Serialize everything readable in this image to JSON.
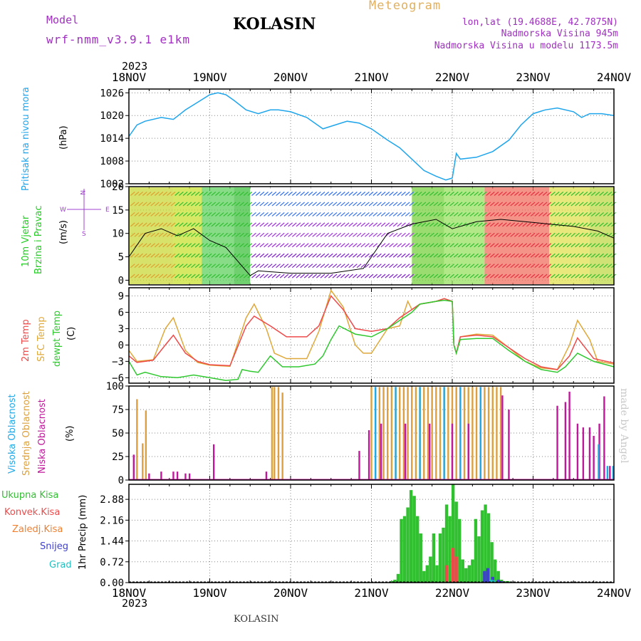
{
  "header": {
    "model_label": "Model",
    "model_name": "wrf-nmm_v3.9.1 e1km",
    "station": "KOLASIN",
    "meteogram_label": "Meteogram",
    "lonlat": "lon,lat (19.4688E, 42.7875N)",
    "elevation": "Nadmorska Visina 945m",
    "model_elevation": "Nadmorska Visina u modelu 1173.5m",
    "credit": "made by Angel",
    "footer_station": "KOLASIN"
  },
  "colors": {
    "pressure": "#1ea5ec",
    "temp2m": "#ef4a4a",
    "sfc": "#dfa83a",
    "dewpt": "#2fc82f",
    "high_cloud": "#20a8e8",
    "mid_cloud": "#dca040",
    "low_cloud": "#c0189a",
    "precip_total": "#30c030",
    "precip_conv": "#ef4a4a",
    "precip_frz": "#f08030",
    "snow": "#4040d0",
    "grad": "#20c0c0",
    "wind_label": "#22cc22",
    "wind_axis": "#a040d0",
    "model_text": "#a030c0",
    "meteogram_text": "#e0b060"
  },
  "chart_data": [
    {
      "type": "line",
      "panel": "pressure",
      "left_label": "Pritisak na nivou mora",
      "ylabel": "(hPa)",
      "ylim": [
        1002,
        1027
      ],
      "yticks": [
        "1026",
        "1020",
        "1014",
        "1008",
        "1002"
      ],
      "ytick_values": [
        1026,
        1020,
        1014,
        1008,
        1002
      ],
      "grid": true,
      "series": [
        {
          "x": [
            0,
            0.1,
            0.2,
            0.4,
            0.55,
            0.7,
            0.85,
            1.0,
            1.1,
            1.2,
            1.3,
            1.45,
            1.6,
            1.75,
            1.85,
            2.0,
            2.2,
            2.4,
            2.55,
            2.7,
            2.85,
            3.0,
            3.2,
            3.35,
            3.5,
            3.65,
            3.8,
            3.92,
            4.0,
            4.05,
            4.1,
            4.3,
            4.5,
            4.7,
            4.85,
            5.0,
            5.15,
            5.3,
            5.5,
            5.6,
            5.7,
            5.85,
            6.0
          ],
          "y": [
            1014.5,
            1017.5,
            1018.5,
            1019.5,
            1019,
            1021.5,
            1023.5,
            1025.5,
            1026,
            1025.5,
            1024,
            1021.5,
            1020.5,
            1021.5,
            1021.5,
            1021,
            1019.5,
            1016.5,
            1017.5,
            1018.5,
            1018,
            1016.5,
            1013.5,
            1011.5,
            1008.5,
            1005.5,
            1004,
            1003,
            1003.5,
            1010,
            1008.5,
            1009,
            1010.5,
            1013.5,
            1017.5,
            1020.5,
            1021.5,
            1022,
            1021,
            1019.5,
            1020.5,
            1020.5,
            1020
          ]
        }
      ]
    },
    {
      "type": "line",
      "panel": "wind",
      "left_label_1": "10m Vjetar",
      "left_label_2": "Brzina i Pravac",
      "ylabel": "(m/s)",
      "compass": [
        "N",
        "E",
        "S",
        "W"
      ],
      "ylim": [
        -1,
        20
      ],
      "yticks": [
        "20",
        "15",
        "10",
        "5",
        "0"
      ],
      "ytick_values": [
        20,
        15,
        10,
        5,
        0
      ],
      "grid": true,
      "series": [
        {
          "x": [
            0,
            0.2,
            0.4,
            0.6,
            0.8,
            1.0,
            1.2,
            1.4,
            1.5,
            1.6,
            2.0,
            2.5,
            2.9,
            3.0,
            3.2,
            3.5,
            3.8,
            4.0,
            4.3,
            4.6,
            4.9,
            5.2,
            5.5,
            5.8,
            6.0
          ],
          "y": [
            5,
            10,
            11,
            9.5,
            11,
            8.5,
            7,
            3,
            1,
            2,
            1.5,
            1.5,
            2.5,
            5,
            10,
            12,
            13,
            11,
            12.5,
            13,
            12.5,
            12,
            11.5,
            10.5,
            9
          ]
        }
      ]
    },
    {
      "type": "line",
      "panel": "temperature",
      "left_label_1": "2m Temp",
      "left_label_2": "SFC Temp",
      "left_label_3": "dewpt Temp",
      "ylabel": "(C)",
      "ylim": [
        -7,
        10.5
      ],
      "yticks": [
        "9",
        "6",
        "3",
        "0",
        "−3",
        "−6"
      ],
      "ytick_values": [
        9,
        6,
        3,
        0,
        -3,
        -6
      ],
      "grid": true,
      "series": [
        {
          "name": "2m Temp",
          "x": [
            0,
            0.1,
            0.3,
            0.45,
            0.55,
            0.7,
            0.85,
            1.0,
            1.25,
            1.45,
            1.55,
            1.75,
            1.95,
            2.2,
            2.35,
            2.5,
            2.65,
            2.8,
            3.0,
            3.2,
            3.35,
            3.5,
            3.6,
            3.8,
            3.9,
            4.0,
            4.02,
            4.05,
            4.1,
            4.3,
            4.5,
            4.7,
            4.9,
            5.1,
            5.3,
            5.45,
            5.55,
            5.75,
            6.0
          ],
          "y": [
            -2,
            -3.2,
            -2.8,
            0,
            1.8,
            -1.5,
            -3,
            -3.6,
            -3.8,
            3.5,
            5.3,
            3.5,
            1.5,
            1.5,
            3.5,
            9,
            6.5,
            3,
            2.5,
            3,
            5,
            6.5,
            7.5,
            8,
            8.5,
            8,
            0,
            -1.5,
            1.5,
            1.8,
            1.5,
            -0.5,
            -2.5,
            -4,
            -4.5,
            -2,
            1.3,
            -2.5,
            -3.3
          ]
        },
        {
          "name": "SFC Temp",
          "x": [
            0,
            0.1,
            0.3,
            0.45,
            0.55,
            0.7,
            0.85,
            1.0,
            1.25,
            1.45,
            1.55,
            1.7,
            1.8,
            1.95,
            2.2,
            2.35,
            2.5,
            2.65,
            2.8,
            2.9,
            3.0,
            3.2,
            3.35,
            3.45,
            3.5,
            3.6,
            3.8,
            3.9,
            4.0,
            4.02,
            4.05,
            4.1,
            4.3,
            4.5,
            4.7,
            4.9,
            5.1,
            5.3,
            5.45,
            5.55,
            5.7,
            5.8,
            6.0
          ],
          "y": [
            -1,
            -3,
            -2.7,
            3,
            5,
            -1,
            -3.2,
            -3.7,
            -3.9,
            5,
            7.5,
            3,
            -1.5,
            -2.5,
            -2.5,
            2.5,
            10,
            7,
            0,
            -1.5,
            -1.5,
            3,
            3.5,
            8,
            6.5,
            7.5,
            8,
            8.5,
            8,
            0,
            -1.5,
            1.5,
            2,
            1.8,
            -0.5,
            -3,
            -4.2,
            -4.5,
            0,
            4.5,
            1,
            -3,
            -3.5
          ]
        },
        {
          "name": "dewpt Temp",
          "x": [
            0,
            0.1,
            0.2,
            0.4,
            0.6,
            0.8,
            1.0,
            1.2,
            1.35,
            1.4,
            1.5,
            1.6,
            1.75,
            1.9,
            2.1,
            2.3,
            2.4,
            2.5,
            2.6,
            2.8,
            3.0,
            3.2,
            3.35,
            3.5,
            3.6,
            3.8,
            3.9,
            4.0,
            4.02,
            4.05,
            4.1,
            4.3,
            4.5,
            4.7,
            4.9,
            5.1,
            5.3,
            5.4,
            5.55,
            5.75,
            6.0
          ],
          "y": [
            -3,
            -5.5,
            -5,
            -5.8,
            -6,
            -5.5,
            -6,
            -6.5,
            -6.3,
            -4.5,
            -4.8,
            -5,
            -2,
            -4,
            -4,
            -3.5,
            -2,
            1,
            3.5,
            2,
            1.5,
            3,
            4.5,
            6,
            7.5,
            8,
            8.2,
            8,
            0,
            -1.5,
            1,
            1.2,
            1.2,
            -1,
            -3,
            -4.5,
            -5,
            -4,
            -1.5,
            -3,
            -4
          ]
        }
      ]
    },
    {
      "type": "bar",
      "panel": "clouds",
      "left_label_1": "Visoka Oblacnost",
      "left_label_2": "Srednja Oblacnost",
      "left_label_3": "Niska Oblacnost",
      "ylabel": "(%)",
      "ylim": [
        0,
        100
      ],
      "yticks": [
        "100",
        "75",
        "50",
        "25",
        "0"
      ],
      "ytick_values": [
        100,
        75,
        50,
        25,
        0
      ],
      "grid": true,
      "series": [
        {
          "name": "Srednja Oblacnost",
          "x": [
            0.1,
            0.17,
            0.21,
            1.77,
            1.8,
            1.85,
            1.9,
            3.0,
            3.05,
            3.1,
            3.15,
            3.2,
            3.25,
            3.3,
            3.35,
            3.4,
            3.45,
            3.5,
            3.55,
            3.6,
            3.65,
            3.7,
            3.75,
            3.8,
            3.85,
            3.9,
            3.95,
            4.0,
            4.05,
            4.1,
            4.15,
            4.2,
            4.25,
            4.3,
            4.35,
            4.4,
            4.45,
            4.5,
            4.55,
            4.6
          ],
          "y": [
            86,
            39,
            74,
            99,
            99,
            99,
            93,
            99,
            99,
            99,
            99,
            99,
            99,
            99,
            99,
            99,
            99,
            99,
            99,
            99,
            99,
            99,
            99,
            99,
            99,
            99,
            99,
            99,
            99,
            99,
            99,
            99,
            99,
            99,
            99,
            99,
            99,
            99,
            99,
            99
          ]
        },
        {
          "name": "Niska Oblacnost",
          "x": [
            0.06,
            0.25,
            0.4,
            0.55,
            0.6,
            0.7,
            0.75,
            1.05,
            1.7,
            2.85,
            2.97,
            3.12,
            3.42,
            3.72,
            4.0,
            4.2,
            4.62,
            4.7,
            5.3,
            5.4,
            5.45,
            5.55,
            5.62,
            5.7,
            5.75,
            5.82,
            5.88,
            5.95
          ],
          "y": [
            27,
            7,
            9,
            9,
            9,
            7,
            7,
            38,
            9,
            31,
            53,
            60,
            60,
            60,
            60,
            60,
            90,
            75,
            79,
            83,
            94,
            60,
            56,
            56,
            47,
            60,
            89,
            15
          ]
        },
        {
          "name": "Visoka Oblacnost",
          "x": [
            3.05,
            3.3,
            3.6,
            3.9,
            4.1,
            4.35,
            5.81,
            5.92,
            5.99
          ],
          "y": [
            99,
            99,
            99,
            99,
            99,
            99,
            38,
            15,
            15
          ]
        }
      ]
    },
    {
      "type": "bar",
      "panel": "precipitation",
      "left_label_1": "Ukupna Kisa",
      "left_label_2": "Konvek.Kisa",
      "left_label_3": "Zaledj.Kisa",
      "left_label_4": "Snijeg",
      "left_label_5": "Grad",
      "ylabel": "1hr Precip (mm)",
      "ylim": [
        0,
        3.4
      ],
      "yticks": [
        "2.88",
        "2.16",
        "1.44",
        "0.72",
        "0.00"
      ],
      "ytick_values": [
        2.88,
        2.16,
        1.44,
        0.72,
        0
      ],
      "grid": true,
      "series": [
        {
          "name": "Ukupna Kisa",
          "x": [
            3.25,
            3.29,
            3.33,
            3.37,
            3.41,
            3.45,
            3.49,
            3.53,
            3.57,
            3.61,
            3.65,
            3.69,
            3.73,
            3.77,
            3.81,
            3.85,
            3.89,
            3.93,
            3.97,
            4.01,
            4.05,
            4.09,
            4.13,
            4.17,
            4.21,
            4.25,
            4.29,
            4.33,
            4.37,
            4.41,
            4.45,
            4.49,
            4.53,
            4.57,
            4.61,
            4.65,
            4.69
          ],
          "y": [
            0.05,
            0.1,
            0.3,
            2.2,
            2.3,
            2.6,
            3.2,
            3.0,
            2.3,
            1.7,
            0.4,
            0.6,
            0.9,
            1.7,
            0.6,
            1.7,
            1.9,
            2.7,
            2.3,
            3.4,
            2.8,
            2.2,
            0.8,
            0.5,
            0.6,
            0.8,
            2.2,
            1.6,
            2.5,
            2.7,
            2.4,
            1.4,
            0.8,
            0.4,
            0.1,
            0.05,
            0.05
          ]
        },
        {
          "name": "Konvek.Kisa",
          "x": [
            3.93,
            4.01,
            4.05
          ],
          "y": [
            0.6,
            1.2,
            0.9
          ]
        },
        {
          "name": "Snijeg",
          "x": [
            4.4,
            4.44,
            4.5,
            4.57,
            4.61
          ],
          "y": [
            0.4,
            0.5,
            0.2,
            0.1,
            0.05
          ]
        },
        {
          "name": "Grad",
          "x": [
            4.48,
            4.52
          ],
          "y": [
            0.1,
            0.08
          ]
        }
      ]
    }
  ],
  "xaxis": {
    "year_top": "2023",
    "year_bottom": "2023",
    "ticks": [
      "18NOV",
      "19NOV",
      "20NOV",
      "21NOV",
      "22NOV",
      "23NOV",
      "24NOV"
    ],
    "xlim": [
      0,
      6
    ]
  }
}
